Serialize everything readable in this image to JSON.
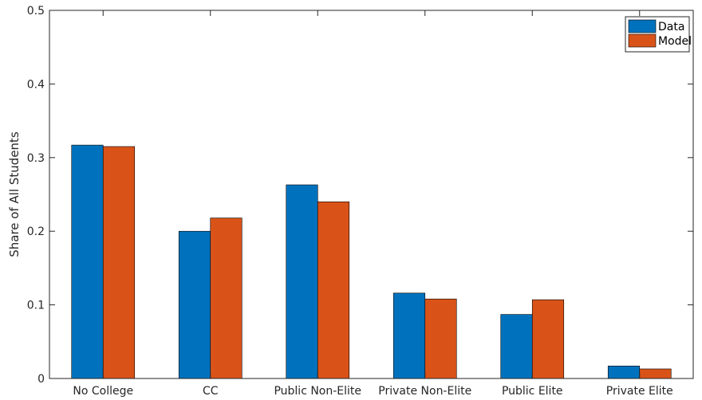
{
  "chart_data": {
    "type": "bar",
    "title": "",
    "xlabel": "",
    "ylabel": "Share of All Students",
    "ylim": [
      0,
      0.5
    ],
    "yticks": [
      "0",
      "0.1",
      "0.2",
      "0.3",
      "0.4",
      "0.5"
    ],
    "categories": [
      "No College",
      "CC",
      "Public Non-Elite",
      "Private Non-Elite",
      "Public Elite",
      "Private Elite"
    ],
    "series": [
      {
        "name": "Data",
        "color": "#0072BD",
        "values": [
          0.317,
          0.2,
          0.263,
          0.116,
          0.087,
          0.017
        ]
      },
      {
        "name": "Model",
        "color": "#D95319",
        "values": [
          0.315,
          0.218,
          0.24,
          0.108,
          0.107,
          0.013
        ]
      }
    ],
    "grid": false,
    "legend_position": "top-right"
  }
}
